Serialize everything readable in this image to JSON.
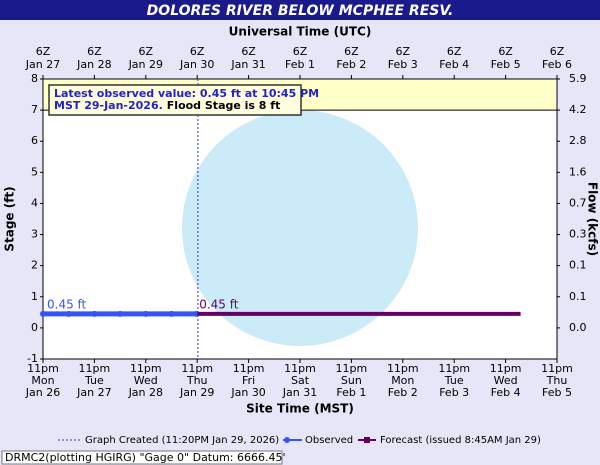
{
  "chart_data": {
    "type": "line",
    "title": "DOLORES RIVER BELOW MCPHEE RESV.",
    "x_title": "Site Time (MST)",
    "x2_title": "Universal Time (UTC)",
    "y_title": "Stage (ft)",
    "y2_title": "Flow (kcfs)",
    "xlim": [
      "2026-01-26T23:00",
      "2026-02-05T23:00"
    ],
    "xticks": [
      {
        "value": "2026-01-26T23:00",
        "label": [
          "11pm",
          "Mon",
          "Jan 26"
        ]
      },
      {
        "value": "2026-01-27T23:00",
        "label": [
          "11pm",
          "Tue",
          "Jan 27"
        ]
      },
      {
        "value": "2026-01-28T23:00",
        "label": [
          "11pm",
          "Wed",
          "Jan 28"
        ]
      },
      {
        "value": "2026-01-29T23:00",
        "label": [
          "11pm",
          "Thu",
          "Jan 29"
        ]
      },
      {
        "value": "2026-01-30T23:00",
        "label": [
          "11pm",
          "Fri",
          "Jan 30"
        ]
      },
      {
        "value": "2026-01-31T23:00",
        "label": [
          "11pm",
          "Sat",
          "Jan 31"
        ]
      },
      {
        "value": "2026-02-01T23:00",
        "label": [
          "11pm",
          "Sun",
          "Feb 1"
        ]
      },
      {
        "value": "2026-02-02T23:00",
        "label": [
          "11pm",
          "Mon",
          "Feb 2"
        ]
      },
      {
        "value": "2026-02-03T23:00",
        "label": [
          "11pm",
          "Tue",
          "Feb 3"
        ]
      },
      {
        "value": "2026-02-04T23:00",
        "label": [
          "11pm",
          "Wed",
          "Feb 4"
        ]
      },
      {
        "value": "2026-02-05T23:00",
        "label": [
          "11pm",
          "Thu",
          "Feb 5"
        ]
      }
    ],
    "x2ticks": [
      {
        "value": "2026-01-26T23:00",
        "label": [
          "6Z",
          "Jan 27"
        ]
      },
      {
        "value": "2026-01-27T23:00",
        "label": [
          "6Z",
          "Jan 28"
        ]
      },
      {
        "value": "2026-01-28T23:00",
        "label": [
          "6Z",
          "Jan 29"
        ]
      },
      {
        "value": "2026-01-29T23:00",
        "label": [
          "6Z",
          "Jan 30"
        ]
      },
      {
        "value": "2026-01-30T23:00",
        "label": [
          "6Z",
          "Jan 31"
        ]
      },
      {
        "value": "2026-01-31T23:00",
        "label": [
          "6Z",
          "Feb  1"
        ]
      },
      {
        "value": "2026-02-01T23:00",
        "label": [
          "6Z",
          "Feb  2"
        ]
      },
      {
        "value": "2026-02-02T23:00",
        "label": [
          "6Z",
          "Feb  3"
        ]
      },
      {
        "value": "2026-02-03T23:00",
        "label": [
          "6Z",
          "Feb  4"
        ]
      },
      {
        "value": "2026-02-04T23:00",
        "label": [
          "6Z",
          "Feb  5"
        ]
      },
      {
        "value": "2026-02-05T23:00",
        "label": [
          "6Z",
          "Feb  6"
        ]
      }
    ],
    "ylim": [
      -1,
      8
    ],
    "yticks": [
      -1,
      0,
      1,
      2,
      3,
      4,
      5,
      6,
      7,
      8
    ],
    "y2lim": [
      -1,
      8
    ],
    "y2ticks": [
      {
        "value": 0,
        "label": "0.0"
      },
      {
        "value": 1,
        "label": "0.1"
      },
      {
        "value": 2,
        "label": "0.1"
      },
      {
        "value": 3,
        "label": "0.3"
      },
      {
        "value": 4,
        "label": "0.7"
      },
      {
        "value": 5,
        "label": "1.6"
      },
      {
        "value": 6,
        "label": "2.8"
      },
      {
        "value": 7,
        "label": "4.2"
      },
      {
        "value": 8,
        "label": "5.9"
      }
    ],
    "flood_band": [
      7,
      8
    ],
    "flood_band_color": "#ffffc8",
    "created": "2026-01-29T23:20",
    "created_label": "Graph Created (11:20PM Jan 29, 2026)",
    "series": [
      {
        "name": "Observed",
        "color": "#3355ff",
        "start_label": "0.45 ft",
        "x": [
          "2026-01-26T23:00",
          "2026-01-27T11:00",
          "2026-01-27T23:00",
          "2026-01-28T11:00",
          "2026-01-28T23:00",
          "2026-01-29T11:00",
          "2026-01-29T22:45"
        ],
        "values": [
          0.45,
          0.45,
          0.45,
          0.45,
          0.45,
          0.45,
          0.45
        ]
      },
      {
        "name": "Forecast (issued 8:45AM Jan 29)",
        "color": "#660066",
        "start_label": "0.45 ft",
        "x": [
          "2026-01-29T23:00",
          "2026-01-30T23:00",
          "2026-01-31T23:00",
          "2026-02-01T23:00",
          "2026-02-02T23:00",
          "2026-02-03T23:00",
          "2026-02-04T23:00",
          "2026-02-05T06:00"
        ],
        "values": [
          0.45,
          0.45,
          0.45,
          0.45,
          0.45,
          0.45,
          0.45,
          0.45
        ]
      }
    ],
    "info_box": {
      "line1": "Latest observed value: 0.45 ft at 10:45 PM",
      "line2": "MST 29-Jan-2026.",
      "flood": "Flood Stage is 8 ft"
    },
    "footer": "DRMC2(plotting HGIRG) \"Gage 0\" Datum: 6666.45'"
  }
}
